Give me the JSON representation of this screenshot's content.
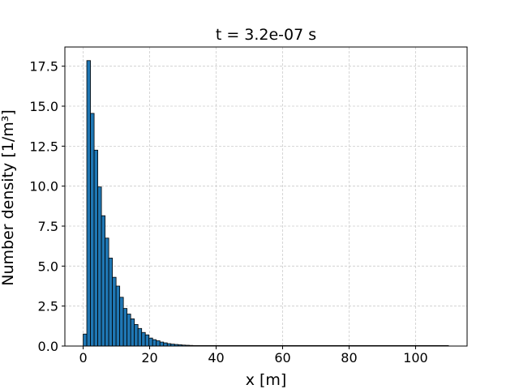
{
  "chart_data": {
    "type": "bar",
    "title": "t = 3.2e-07 s",
    "xlabel": "x [m]",
    "ylabel": "Number density [1/m³]",
    "xlim": [
      -5.5,
      115.5
    ],
    "ylim": [
      0,
      18.7
    ],
    "x_ticks": [
      0,
      20,
      40,
      60,
      80,
      100
    ],
    "x_tick_labels": [
      "0",
      "20",
      "40",
      "60",
      "80",
      "100"
    ],
    "y_ticks": [
      0,
      2.5,
      5,
      7.5,
      10,
      12.5,
      15,
      17.5
    ],
    "y_tick_labels": [
      "0.0",
      "2.5",
      "5.0",
      "7.5",
      "10.0",
      "12.5",
      "15.0",
      "17.5"
    ],
    "grid": true,
    "legend": "none",
    "bin_width": 1.1,
    "bin_centers": [
      0.55,
      1.65,
      2.75,
      3.85,
      4.95,
      6.05,
      7.15,
      8.25,
      9.35,
      10.45,
      11.55,
      12.65,
      13.75,
      14.85,
      15.95,
      17.05,
      18.15,
      19.25,
      20.35,
      21.45,
      22.55,
      23.65,
      24.75,
      25.85,
      26.95,
      28.05,
      29.15,
      30.25,
      31.35,
      32.45
    ],
    "values": [
      0.75,
      17.85,
      14.55,
      12.25,
      9.95,
      8.15,
      6.75,
      5.5,
      4.3,
      3.75,
      3.05,
      2.35,
      2.0,
      1.7,
      1.35,
      1.1,
      0.85,
      0.7,
      0.5,
      0.4,
      0.33,
      0.25,
      0.2,
      0.15,
      0.12,
      0.1,
      0.08,
      0.06,
      0.05,
      0.04
    ],
    "tail_range": [
      32.45,
      110.0
    ],
    "colors": {
      "bar_fill": "#1f77b4",
      "bar_edge": "#000000",
      "grid": "#cccccc"
    }
  }
}
